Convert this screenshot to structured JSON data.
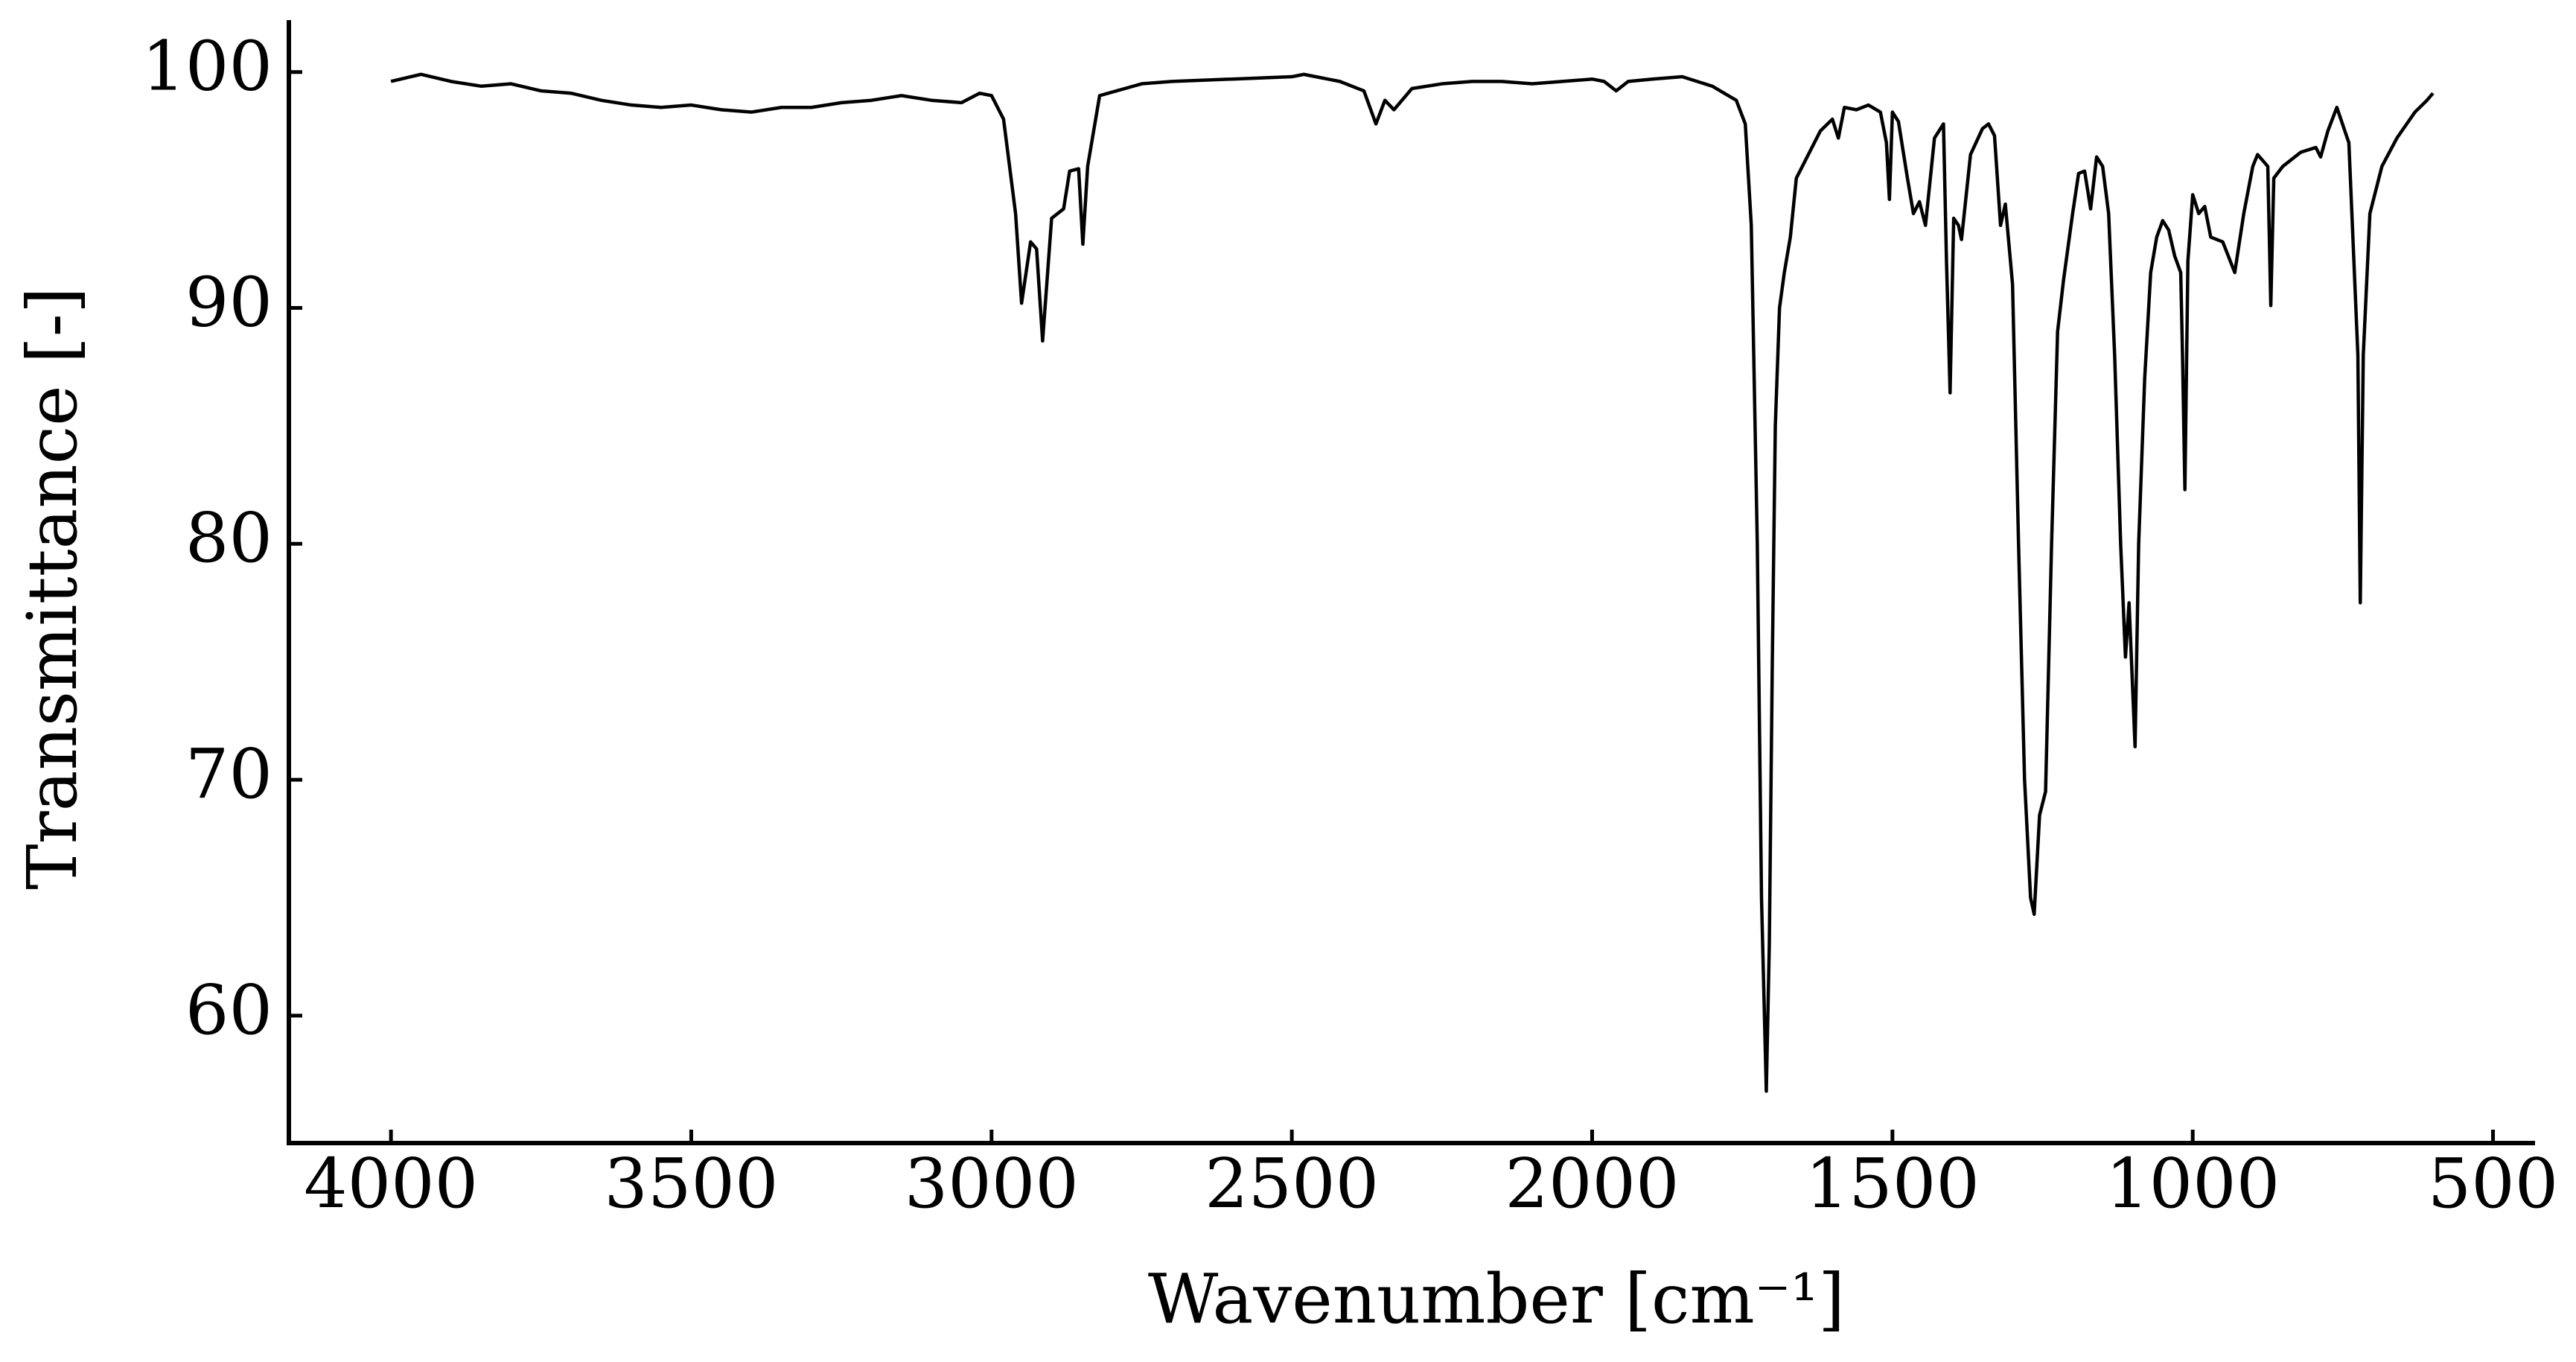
{
  "chart_data": {
    "type": "line",
    "xlabel": "Wavenumber [cm⁻¹]",
    "ylabel": "Transmittance [-]",
    "color": "#000000",
    "xlim": [
      4170,
      430
    ],
    "ylim": [
      54.6,
      102.2
    ],
    "xticks": [
      4000,
      3500,
      3000,
      2500,
      2000,
      1500,
      1000,
      500
    ],
    "yticks": [
      60,
      70,
      80,
      90,
      100
    ],
    "x": [
      4000,
      3950,
      3900,
      3850,
      3800,
      3750,
      3700,
      3650,
      3600,
      3550,
      3500,
      3450,
      3400,
      3350,
      3300,
      3250,
      3200,
      3150,
      3100,
      3050,
      3020,
      3000,
      2980,
      2960,
      2950,
      2935,
      2925,
      2915,
      2900,
      2880,
      2870,
      2855,
      2848,
      2840,
      2820,
      2750,
      2700,
      2600,
      2500,
      2480,
      2420,
      2380,
      2360,
      2345,
      2330,
      2300,
      2250,
      2200,
      2150,
      2100,
      2050,
      2000,
      1980,
      1960,
      1940,
      1900,
      1850,
      1800,
      1760,
      1745,
      1735,
      1725,
      1718,
      1710,
      1705,
      1700,
      1695,
      1688,
      1680,
      1670,
      1660,
      1640,
      1620,
      1600,
      1590,
      1580,
      1560,
      1540,
      1520,
      1510,
      1505,
      1500,
      1490,
      1475,
      1465,
      1455,
      1445,
      1430,
      1415,
      1410,
      1404,
      1398,
      1390,
      1385,
      1370,
      1350,
      1340,
      1330,
      1320,
      1312,
      1300,
      1290,
      1280,
      1270,
      1264,
      1255,
      1245,
      1235,
      1225,
      1215,
      1200,
      1190,
      1180,
      1170,
      1160,
      1150,
      1140,
      1130,
      1120,
      1112,
      1106,
      1096,
      1090,
      1080,
      1070,
      1060,
      1050,
      1040,
      1030,
      1020,
      1017,
      1013,
      1008,
      1000,
      990,
      980,
      970,
      950,
      930,
      915,
      900,
      892,
      875,
      870,
      865,
      850,
      820,
      795,
      787,
      775,
      760,
      740,
      725,
      721,
      716,
      705,
      685,
      660,
      630,
      610,
      600
    ],
    "values": [
      99.6,
      99.9,
      99.6,
      99.4,
      99.5,
      99.2,
      99.1,
      98.8,
      98.6,
      98.5,
      98.6,
      98.4,
      98.3,
      98.5,
      98.5,
      98.7,
      98.8,
      99.0,
      98.8,
      98.7,
      99.1,
      99.0,
      98.0,
      94.0,
      90.2,
      92.8,
      92.5,
      88.6,
      93.8,
      94.2,
      95.8,
      95.9,
      92.7,
      96.0,
      99.0,
      99.5,
      99.6,
      99.7,
      99.8,
      99.9,
      99.6,
      99.2,
      97.8,
      98.8,
      98.4,
      99.3,
      99.5,
      99.6,
      99.6,
      99.5,
      99.6,
      99.7,
      99.6,
      99.2,
      99.6,
      99.7,
      99.8,
      99.4,
      98.8,
      97.8,
      93.5,
      80.0,
      65.0,
      56.8,
      63.0,
      75.0,
      85.0,
      90.0,
      91.5,
      93.0,
      95.5,
      96.5,
      97.5,
      98.0,
      97.2,
      98.5,
      98.4,
      98.6,
      98.3,
      97.0,
      94.6,
      98.3,
      97.9,
      95.5,
      94.0,
      94.5,
      93.5,
      97.2,
      97.8,
      92.0,
      86.4,
      93.8,
      93.5,
      92.9,
      96.5,
      97.6,
      97.8,
      97.3,
      93.5,
      94.4,
      91.0,
      80.0,
      70.0,
      65.0,
      64.3,
      68.5,
      69.5,
      80.0,
      89.0,
      91.2,
      94.0,
      95.7,
      95.8,
      94.2,
      96.4,
      96.0,
      94.0,
      88.0,
      80.0,
      75.2,
      77.5,
      71.4,
      80.0,
      87.0,
      91.5,
      93.0,
      93.7,
      93.3,
      92.2,
      91.5,
      88.0,
      82.3,
      92.0,
      94.8,
      94.0,
      94.3,
      93.0,
      92.8,
      91.5,
      94.0,
      96.0,
      96.5,
      96.0,
      90.1,
      95.5,
      96.0,
      96.6,
      96.8,
      96.4,
      97.5,
      98.5,
      97.0,
      88.0,
      77.5,
      88.0,
      94.0,
      96.0,
      97.2,
      98.3,
      98.8,
      99.1
    ]
  }
}
